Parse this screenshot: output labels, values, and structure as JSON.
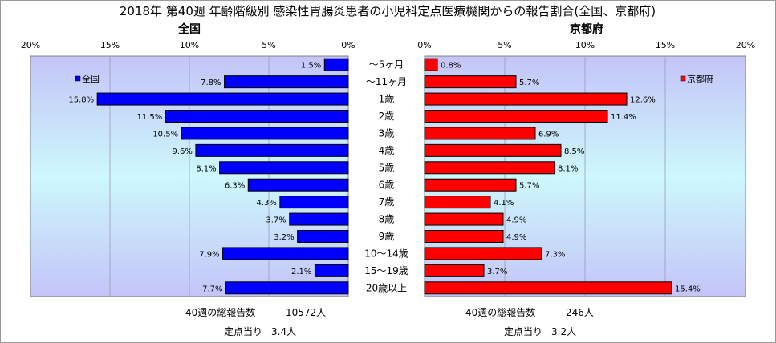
{
  "title": "2018年 第40週 年齢階級別 感染性胃腸炎患者の小児科定点医療機関からの報告割合(全国、京都府)",
  "colors": {
    "national_bar": "#0000ff",
    "kyoto_bar": "#ff0000",
    "plot_bg_top": "#c4c4f8",
    "plot_bg_mid": "#cdf8fc"
  },
  "chart_data": [
    {
      "type": "bar",
      "orientation": "horizontal",
      "direction": "right-to-left",
      "title": "全国",
      "categories": [
        "～5ヶ月",
        "～11ヶ月",
        "1歳",
        "2歳",
        "3歳",
        "4歳",
        "5歳",
        "6歳",
        "7歳",
        "8歳",
        "9歳",
        "10～14歳",
        "15～19歳",
        "20歳以上"
      ],
      "series": [
        {
          "name": "全国",
          "values": [
            1.5,
            7.8,
            15.8,
            11.5,
            10.5,
            9.6,
            8.1,
            6.3,
            4.3,
            3.7,
            3.2,
            7.9,
            2.1,
            7.7
          ]
        }
      ],
      "value_labels": [
        "1.5%",
        "7.8%",
        "15.8%",
        "11.5%",
        "10.5%",
        "9.6%",
        "8.1%",
        "6.3%",
        "4.3%",
        "3.7%",
        "3.2%",
        "7.9%",
        "2.1%",
        "7.7%"
      ],
      "xlim": [
        0,
        20
      ],
      "xticks": [
        "20%",
        "15%",
        "10%",
        "5%",
        "0%"
      ],
      "legend": "top-left",
      "grid": true
    },
    {
      "type": "bar",
      "orientation": "horizontal",
      "direction": "left-to-right",
      "title": "京都府",
      "categories": [
        "～5ヶ月",
        "～11ヶ月",
        "1歳",
        "2歳",
        "3歳",
        "4歳",
        "5歳",
        "6歳",
        "7歳",
        "8歳",
        "9歳",
        "10～14歳",
        "15～19歳",
        "20歳以上"
      ],
      "series": [
        {
          "name": "京都府",
          "values": [
            0.8,
            5.7,
            12.6,
            11.4,
            6.9,
            8.5,
            8.1,
            5.7,
            4.1,
            4.9,
            4.9,
            7.3,
            3.7,
            15.4
          ]
        }
      ],
      "value_labels": [
        "0.8%",
        "5.7%",
        "12.6%",
        "11.4%",
        "6.9%",
        "8.5%",
        "8.1%",
        "5.7%",
        "4.1%",
        "4.9%",
        "4.9%",
        "7.3%",
        "3.7%",
        "15.4%"
      ],
      "xlim": [
        0,
        20
      ],
      "xticks": [
        "0%",
        "5%",
        "10%",
        "15%",
        "20%"
      ],
      "legend": "top-right",
      "grid": true
    }
  ],
  "footer": {
    "national": {
      "total_label": "40週の総報告数",
      "total_value": "10572人",
      "per_site_label": "定点当り",
      "per_site_value": "3.4人"
    },
    "kyoto": {
      "total_label": "40週の総報告数",
      "total_value": "246人",
      "per_site_label": "定点当り",
      "per_site_value": "3.2人"
    }
  }
}
